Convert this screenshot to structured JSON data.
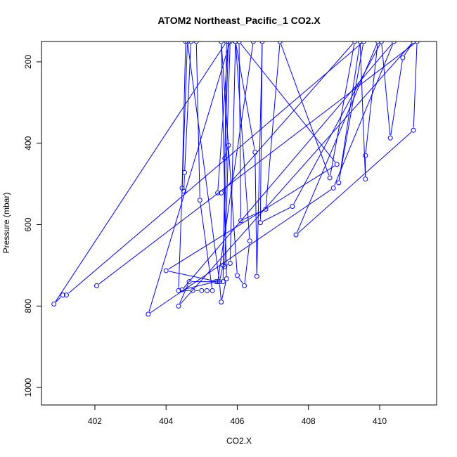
{
  "chart_data": {
    "type": "scatter",
    "title": "ATOM2 Northeast_Pacific_1 CO2.X",
    "xlabel": "CO2.X",
    "ylabel": "Pressure (mbar)",
    "xlim": [
      400.5,
      411.6
    ],
    "ylim": [
      1043,
      150
    ],
    "y_reversed": true,
    "x_ticks": [
      402,
      404,
      406,
      408,
      410
    ],
    "y_ticks": [
      200,
      400,
      600,
      800,
      1000
    ],
    "grid": false,
    "marker": "open-circle",
    "series": [
      {
        "color": "#0000ff",
        "points": [
          [
            404.55,
            150
          ],
          [
            404.45,
            510
          ],
          [
            404.5,
            518
          ],
          [
            404.52,
            472
          ],
          [
            404.7,
            150
          ],
          [
            404.85,
            150
          ],
          [
            404.95,
            540
          ],
          [
            405.3,
            762
          ],
          [
            405.15,
            762
          ],
          [
            405.0,
            762
          ],
          [
            404.75,
            762
          ],
          [
            404.35,
            762
          ],
          [
            404.6,
            150
          ],
          [
            405.5,
            740
          ],
          [
            405.55,
            790
          ],
          [
            405.7,
            733
          ],
          [
            405.55,
            150
          ],
          [
            406.0,
            725
          ],
          [
            406.2,
            750
          ],
          [
            406.35,
            640
          ],
          [
            405.95,
            150
          ],
          [
            406.45,
            150
          ],
          [
            405.45,
            740
          ],
          [
            404.0,
            713
          ],
          [
            408.8,
            452
          ],
          [
            406.05,
            150
          ],
          [
            406.1,
            590
          ],
          [
            406.8,
            562
          ],
          [
            407.2,
            150
          ],
          [
            408.6,
            485
          ],
          [
            409.3,
            150
          ],
          [
            405.55,
            522
          ],
          [
            405.45,
            522
          ],
          [
            405.75,
            150
          ],
          [
            405.65,
            437
          ],
          [
            405.75,
            405
          ],
          [
            405.65,
            703
          ],
          [
            405.8,
            695
          ],
          [
            405.95,
            150
          ],
          [
            406.5,
            422
          ],
          [
            406.55,
            727
          ],
          [
            406.7,
            150
          ],
          [
            406.65,
            595
          ],
          [
            407.55,
            555
          ],
          [
            410.05,
            150
          ],
          [
            410.3,
            387
          ],
          [
            410.65,
            190
          ],
          [
            410.95,
            150
          ],
          [
            404.35,
            800
          ],
          [
            404.65,
            740
          ],
          [
            405.5,
            740
          ],
          [
            405.6,
            700
          ],
          [
            405.8,
            150
          ],
          [
            403.5,
            820
          ],
          [
            408.7,
            510
          ],
          [
            410.4,
            150
          ],
          [
            404.45,
            760
          ],
          [
            405.4,
            740
          ],
          [
            405.6,
            740
          ],
          [
            405.7,
            150
          ],
          [
            400.85,
            795
          ],
          [
            401.1,
            773
          ],
          [
            401.2,
            773
          ],
          [
            409.55,
            150
          ],
          [
            408.85,
            497
          ],
          [
            409.45,
            150
          ],
          [
            409.6,
            488
          ],
          [
            409.6,
            430
          ],
          [
            409.95,
            150
          ],
          [
            407.65,
            625
          ],
          [
            410.95,
            368
          ],
          [
            411.05,
            150
          ],
          [
            402.05,
            750
          ]
        ]
      }
    ]
  }
}
